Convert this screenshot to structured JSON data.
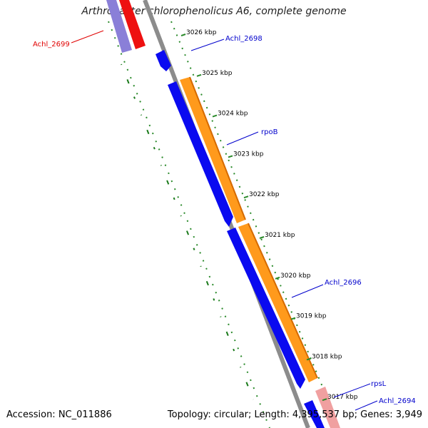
{
  "title": "Arthrobacter chlorophenolicus A6, complete genome",
  "accession": "Accession: NC_011886",
  "summary": "Topology: circular; Length: 4,395,537 bp; Genes: 3,949",
  "ticks": [
    "3026 kbp",
    "3025 kbp",
    "3024 kbp",
    "3023 kbp",
    "3022 kbp",
    "3021 kbp",
    "3020 kbp",
    "3019 kbp",
    "3018 kbp",
    "3017 kbp"
  ],
  "gene_labels": [
    {
      "text": "Achl_2699",
      "color": "#e00000"
    },
    {
      "text": "Achl_2698",
      "color": "#0000cc"
    },
    {
      "text": "rpoB",
      "color": "#0000cc"
    },
    {
      "text": "Achl_2696",
      "color": "#0000cc"
    },
    {
      "text": "rpsL",
      "color": "#0000cc"
    },
    {
      "text": "Achl_2694",
      "color": "#0000cc"
    }
  ],
  "colors": {
    "backbone": "#8c8c8c",
    "cds_blue": "#0a0af0",
    "rrna_orange": "#ff9a1c",
    "pale_red": "#f0a0a0",
    "pale_blue": "#8a7fd8",
    "red": "#ee1010",
    "gc_dots": "#2a8a2a"
  }
}
